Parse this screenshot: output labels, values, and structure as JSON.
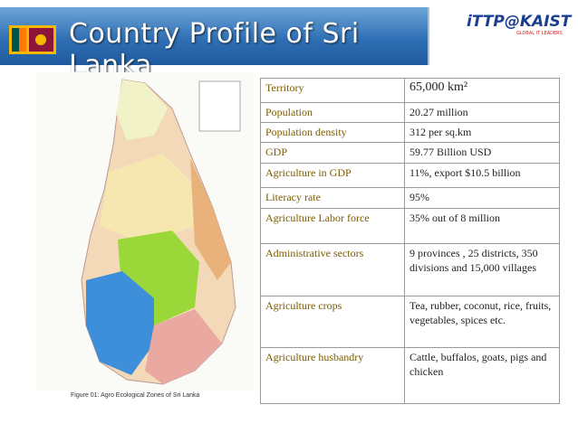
{
  "header": {
    "title": "Country Profile of Sri Lanka"
  },
  "logo": {
    "text": "iTTP@KAIST",
    "subtitle": "GLOBAL IT LEADERS"
  },
  "map": {
    "caption": "Figure 01: Agro Ecological Zones of Sri Lanka"
  },
  "table": {
    "rows": [
      [
        "Territory",
        "65,000 km²"
      ],
      [
        "Population",
        "20.27 million"
      ],
      [
        "Population density",
        "312 per sq.km"
      ],
      [
        "GDP",
        "59.77 Billion USD"
      ],
      [
        "Agriculture in GDP",
        "11%, export  $10.5 billion"
      ],
      [
        "Literacy rate",
        "95%"
      ],
      [
        "Agriculture Labor force",
        "35% out of 8 million"
      ],
      [
        "Administrative sectors",
        "9 provinces , 25 districts, 350 divisions and 15,000 villages"
      ],
      [
        "Agriculture crops",
        "Tea, rubber, coconut, rice,  fruits, vegetables, spices etc."
      ],
      [
        "Agriculture husbandry",
        "Cattle, buffalos, goats, pigs and chicken"
      ]
    ]
  }
}
